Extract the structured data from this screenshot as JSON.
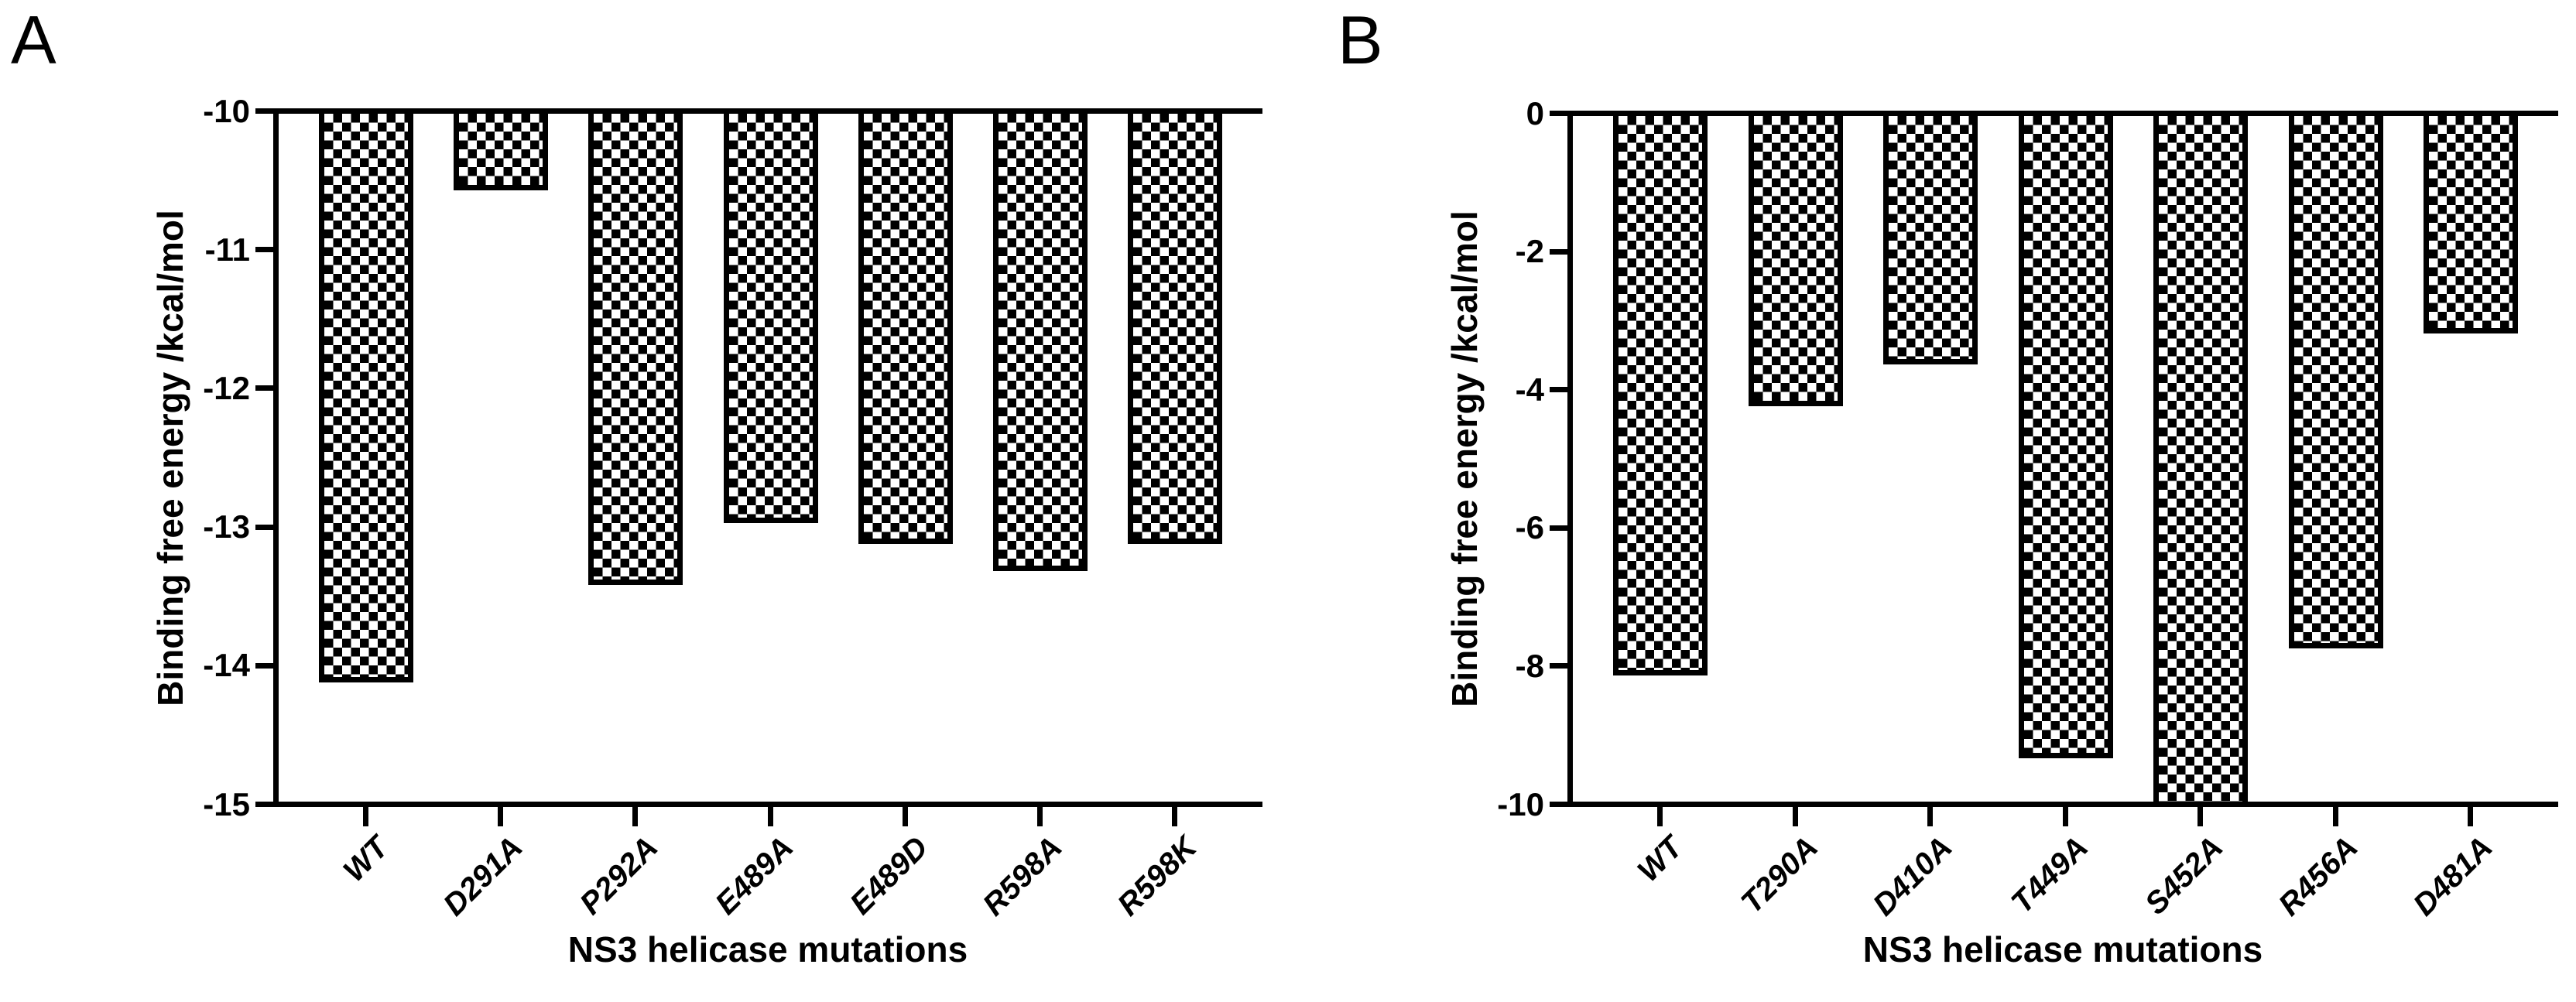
{
  "colors": {
    "axis": "#000000",
    "text": "#000000",
    "bar_fill_foreground": "#000000",
    "bar_fill_background": "#ffffff"
  },
  "chart_data": [
    {
      "panel": "A",
      "type": "bar",
      "title": "",
      "xlabel": "NS3 helicase mutations",
      "ylabel": "Binding free energy /kcal/mol",
      "categories": [
        "WT",
        "D291A",
        "P292A",
        "E489A",
        "E489D",
        "R598A",
        "R598K"
      ],
      "values": [
        -14.1,
        -10.55,
        -13.4,
        -12.95,
        -13.1,
        -13.3,
        -13.1
      ],
      "ylim": [
        -15,
        -10
      ],
      "ytick_values": [
        -10,
        -11,
        -12,
        -13,
        -14,
        -15
      ],
      "ytick_labels": [
        "-10",
        "-11",
        "-12",
        "-13",
        "-14",
        "-15"
      ],
      "grid": false,
      "legend": "none",
      "bar_fill": "black-white checkerboard",
      "bar_border": "solid black"
    },
    {
      "panel": "B",
      "type": "bar",
      "title": "",
      "xlabel": "NS3 helicase mutations",
      "ylabel": "Binding free energy /kcal/mol",
      "categories": [
        "WT",
        "T290A",
        "D410A",
        "T449A",
        "S452A",
        "R456A",
        "D481A"
      ],
      "values": [
        -8.1,
        -4.2,
        -3.6,
        -9.3,
        -10.0,
        -7.7,
        -3.15
      ],
      "ylim": [
        -10,
        0
      ],
      "ytick_values": [
        0,
        -2,
        -4,
        -6,
        -8,
        -10
      ],
      "ytick_labels": [
        "0",
        "-2",
        "-4",
        "-6",
        "-8",
        "-10"
      ],
      "grid": false,
      "legend": "none",
      "bar_fill": "black-white checkerboard",
      "bar_border": "solid black"
    }
  ]
}
